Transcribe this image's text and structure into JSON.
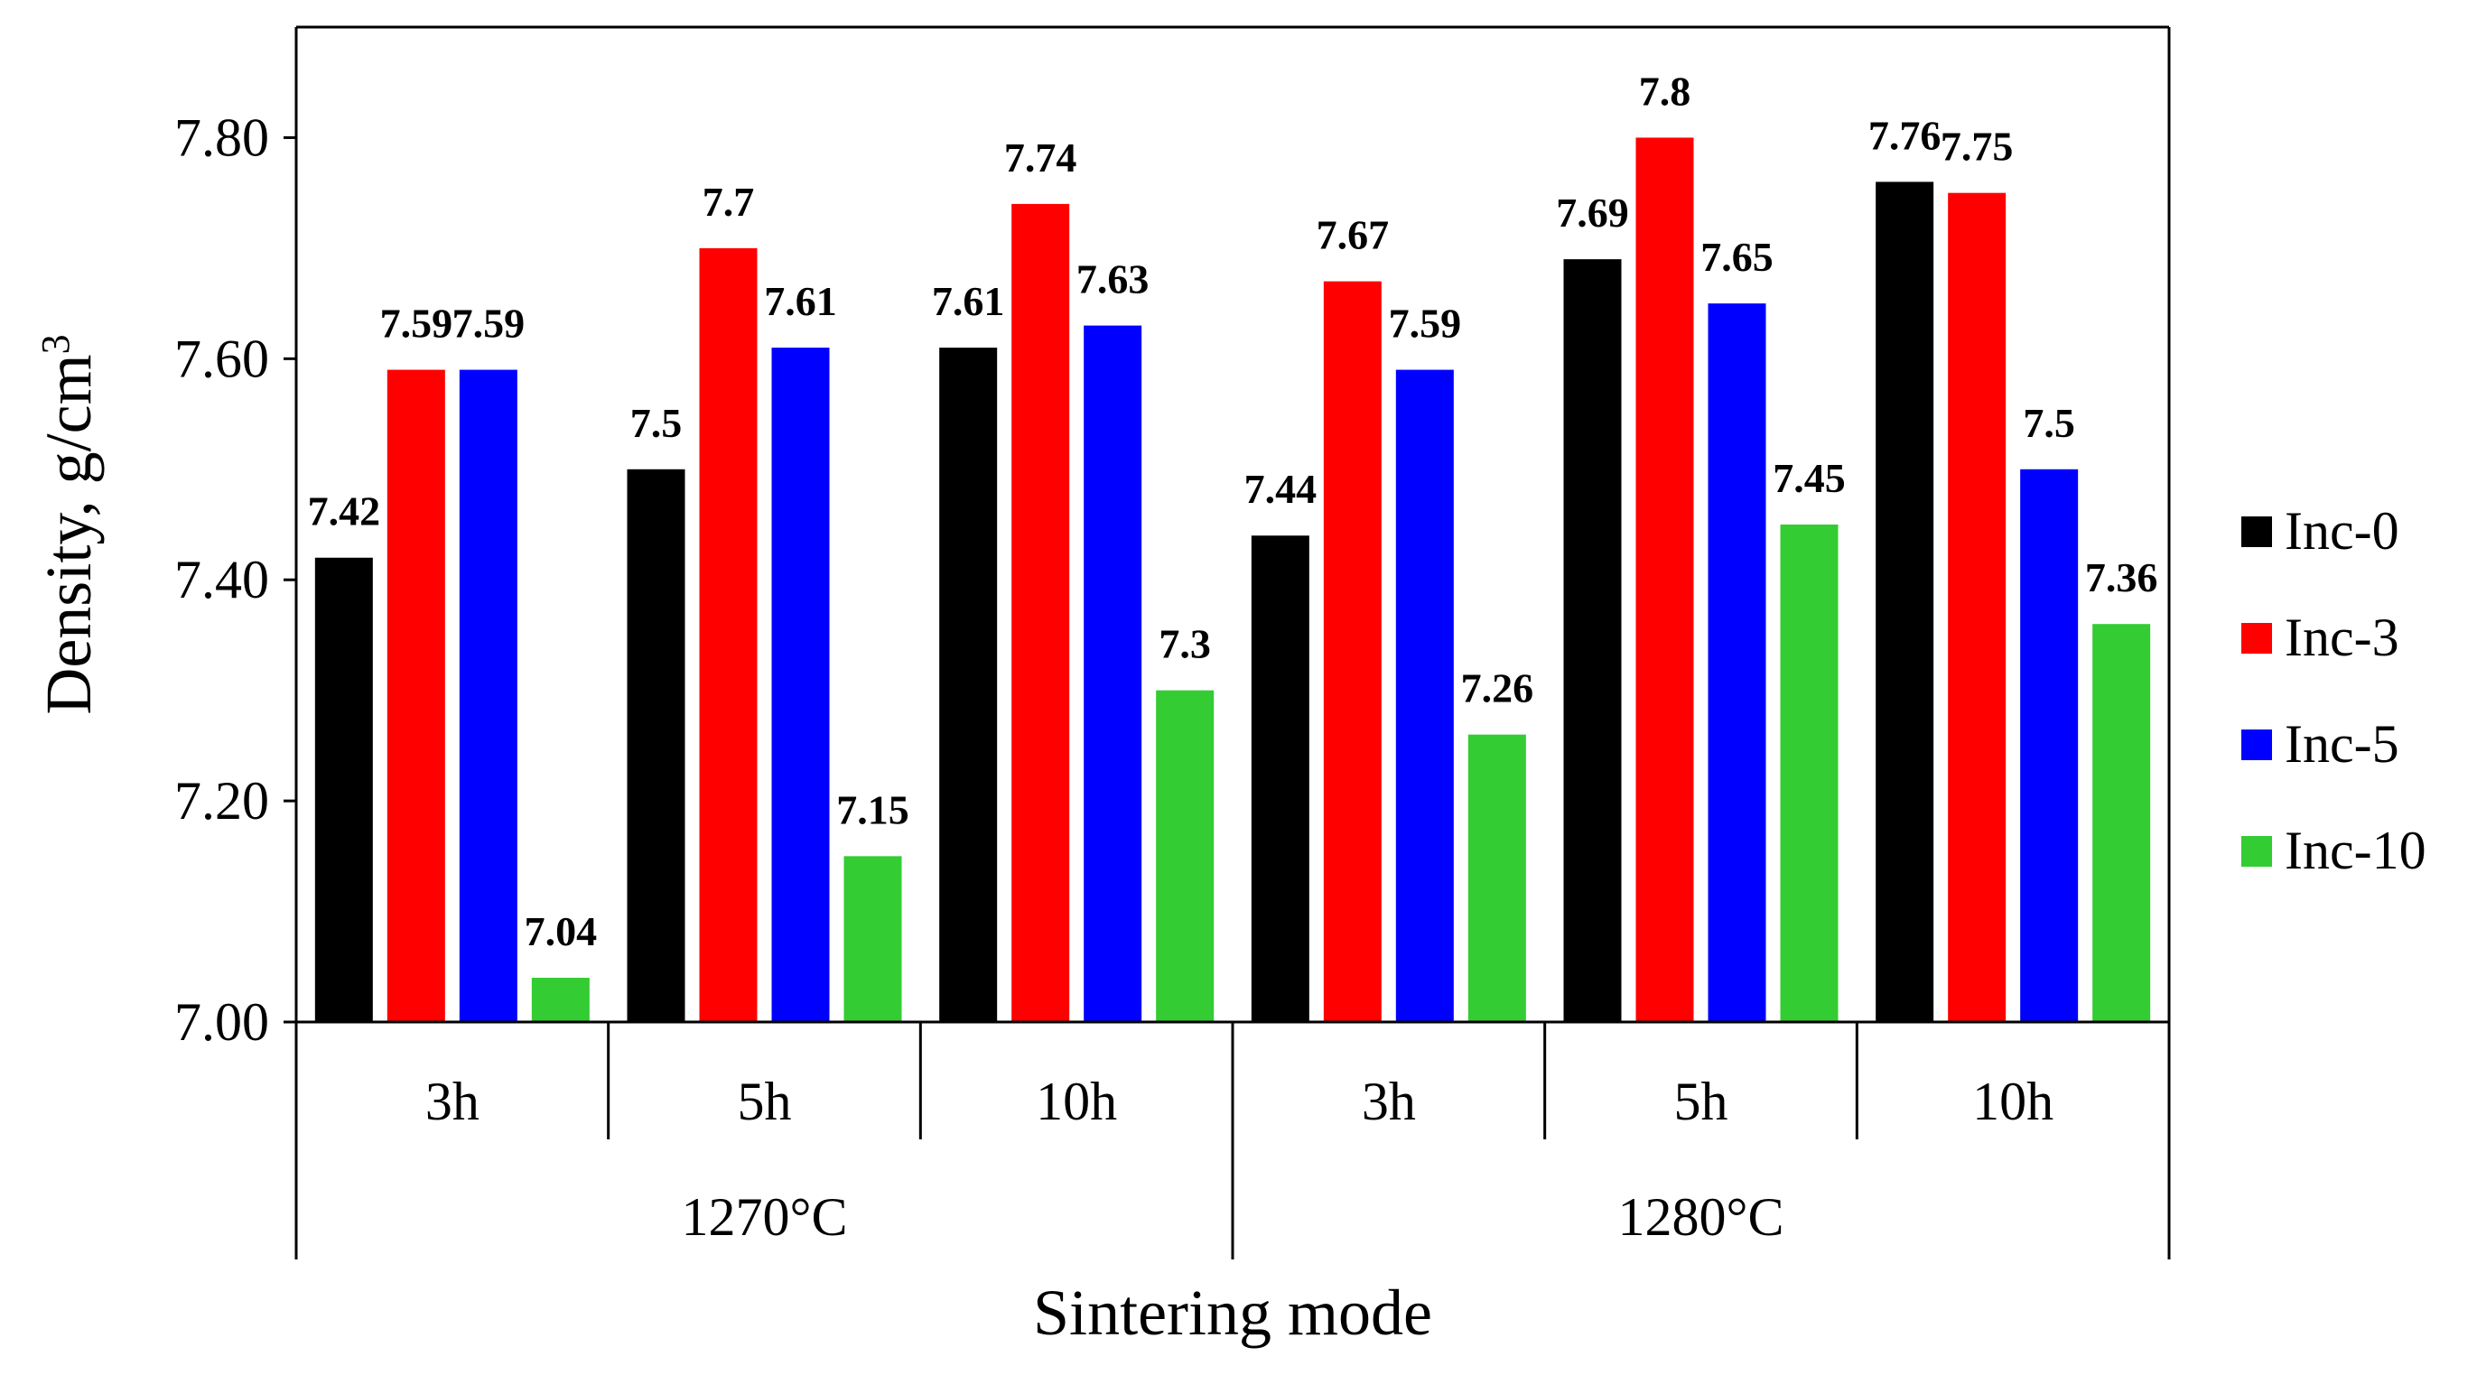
{
  "chart_data": {
    "type": "bar",
    "title": "",
    "xlabel": "Sintering mode",
    "ylabel": "Density, g/cm",
    "ylabel_superscript": "3",
    "ylim": [
      7.0,
      7.9
    ],
    "yticks": [
      7.0,
      7.2,
      7.4,
      7.6,
      7.8
    ],
    "ytick_labels": [
      "7.00",
      "7.20",
      "7.40",
      "7.60",
      "7.80"
    ],
    "categories": [
      "3h",
      "5h",
      "10h",
      "3h",
      "5h",
      "10h"
    ],
    "groups": [
      {
        "label": "1270°C",
        "span": [
          0,
          2
        ]
      },
      {
        "label": "1280°C",
        "span": [
          3,
          5
        ]
      }
    ],
    "series": [
      {
        "name": "Inc-0",
        "color": "#000000",
        "values": [
          7.42,
          7.5,
          7.61,
          7.44,
          7.69,
          7.76
        ],
        "labels": [
          "7.42",
          "7.5",
          "7.61",
          "7.44",
          "7.69",
          "7.76"
        ]
      },
      {
        "name": "Inc-3",
        "color": "#ff0000",
        "values": [
          7.59,
          7.7,
          7.74,
          7.67,
          7.8,
          7.75
        ],
        "labels": [
          "7.59",
          "7.7",
          "7.74",
          "7.67",
          "7.8",
          "7.75"
        ]
      },
      {
        "name": "Inc-5",
        "color": "#0000ff",
        "values": [
          7.59,
          7.61,
          7.63,
          7.59,
          7.65,
          7.5
        ],
        "labels": [
          "7.59",
          "7.61",
          "7.63",
          "7.59",
          "7.65",
          "7.5"
        ]
      },
      {
        "name": "Inc-10",
        "color": "#33cc33",
        "values": [
          7.04,
          7.15,
          7.3,
          7.26,
          7.45,
          7.36
        ],
        "labels": [
          "7.04",
          "7.15",
          "7.3",
          "7.26",
          "7.45",
          "7.36"
        ]
      }
    ],
    "legend_position": "right"
  }
}
